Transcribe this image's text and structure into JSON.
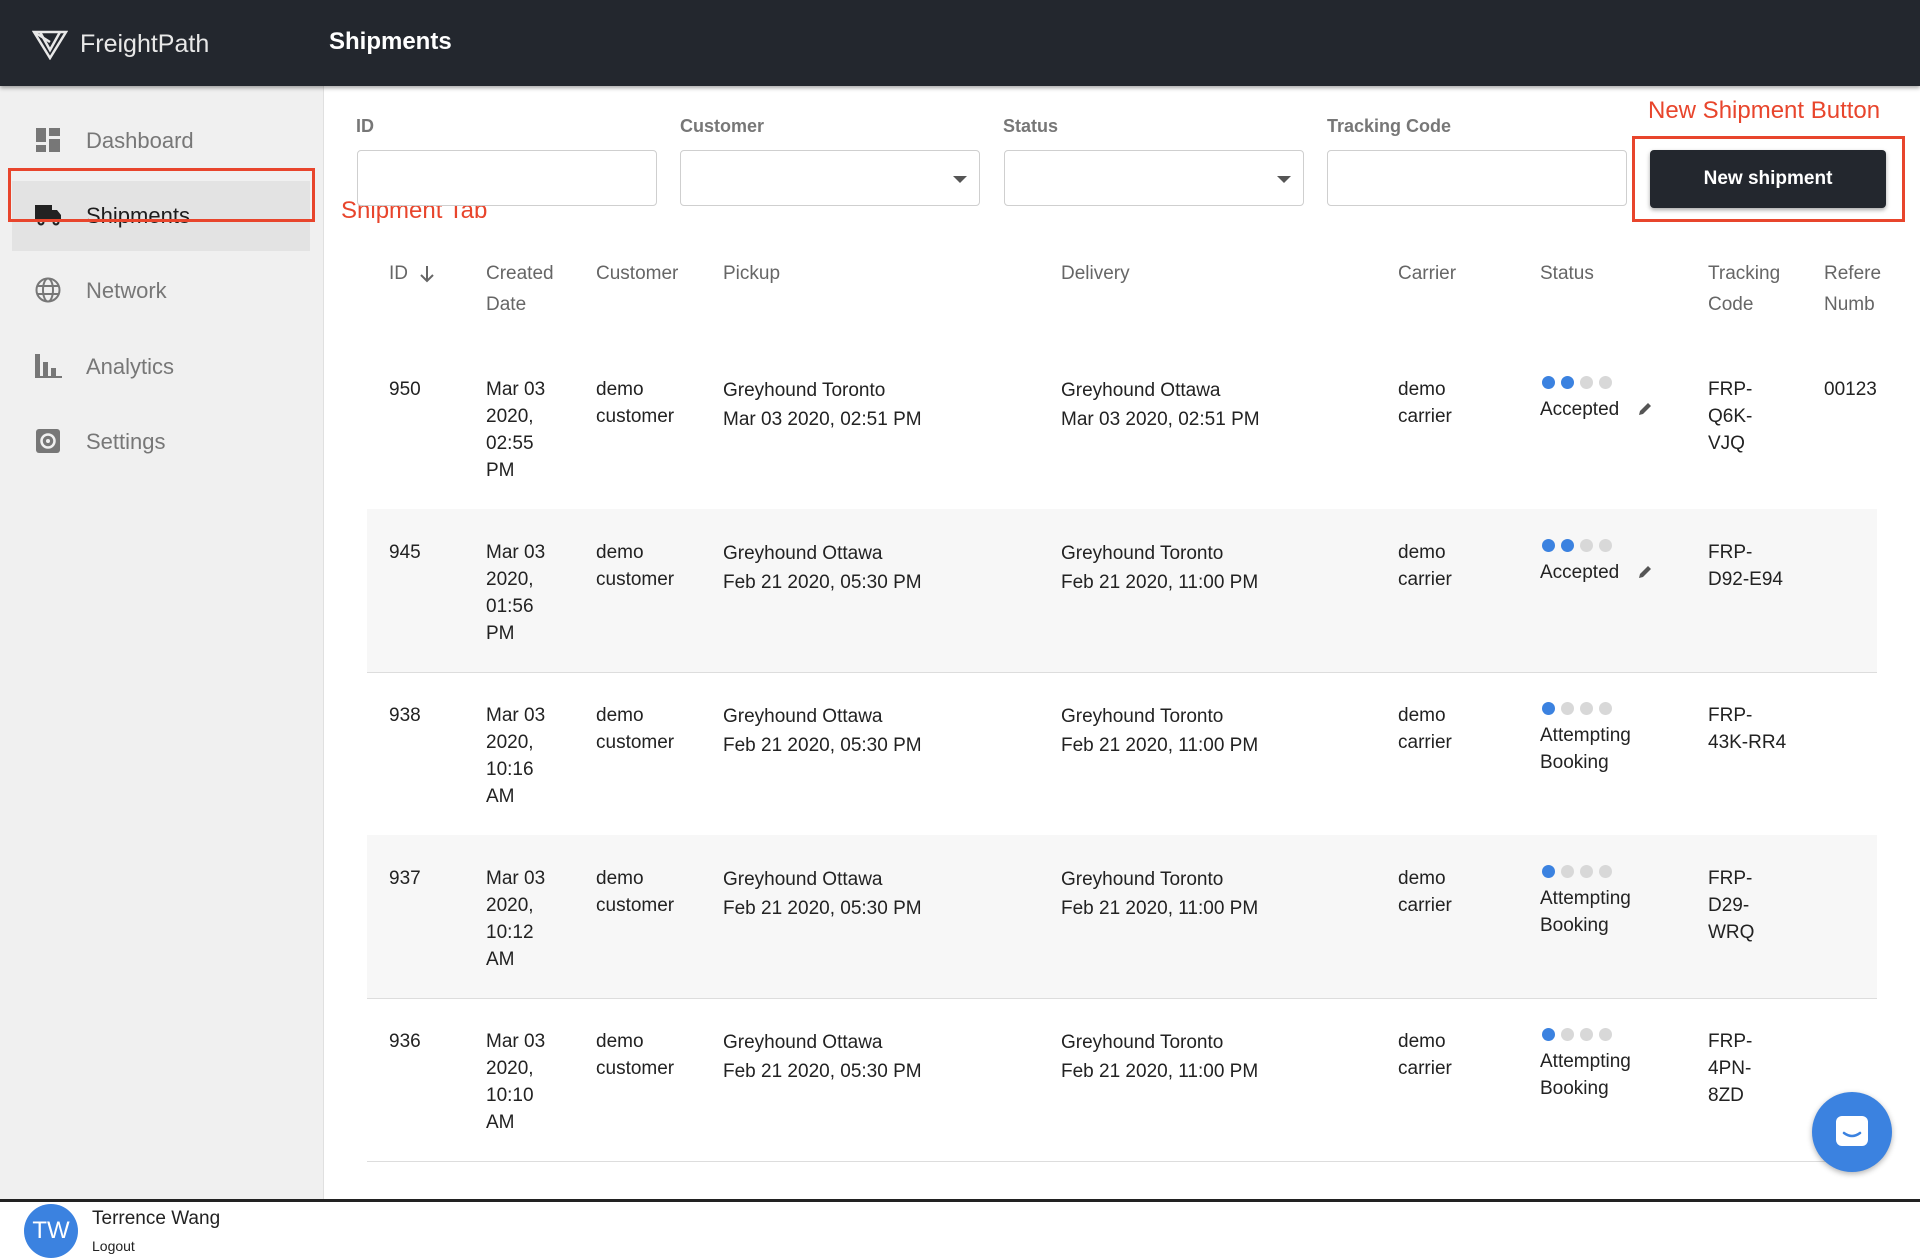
{
  "app": {
    "name": "FreightPath",
    "page_title": "Shipments"
  },
  "sidebar": {
    "items": [
      {
        "label": "Dashboard",
        "icon": "dashboard-icon"
      },
      {
        "label": "Shipments",
        "icon": "truck-icon",
        "active": true
      },
      {
        "label": "Network",
        "icon": "globe-icon"
      },
      {
        "label": "Analytics",
        "icon": "bar-chart-icon"
      },
      {
        "label": "Settings",
        "icon": "gear-icon"
      }
    ],
    "user": {
      "initials": "TW",
      "name": "Terrence Wang",
      "logout": "Logout"
    }
  },
  "annotations": {
    "shipment_tab": "Shipment Tab",
    "new_shipment_button": "New Shipment Button"
  },
  "filters": {
    "id": {
      "label": "ID",
      "value": ""
    },
    "customer": {
      "label": "Customer",
      "value": ""
    },
    "status": {
      "label": "Status",
      "value": ""
    },
    "tracking": {
      "label": "Tracking Code",
      "value": ""
    },
    "new_button": "New shipment"
  },
  "table": {
    "headers": {
      "id": "ID",
      "created": [
        "Created",
        "Date"
      ],
      "customer": "Customer",
      "pickup": "Pickup",
      "delivery": "Delivery",
      "carrier": "Carrier",
      "status": "Status",
      "tracking": [
        "Tracking",
        "Code"
      ],
      "reference": [
        "Refere",
        "Numb"
      ]
    },
    "rows": [
      {
        "id": "950",
        "created": [
          "Mar 03",
          "2020,",
          "02:55",
          "PM"
        ],
        "customer": [
          "demo",
          "customer"
        ],
        "pickup": [
          "Greyhound Toronto",
          "Mar 03 2020, 02:51 PM"
        ],
        "delivery": [
          "Greyhound Ottawa",
          "Mar 03 2020, 02:51 PM"
        ],
        "carrier": [
          "demo",
          "carrier"
        ],
        "status_dots": 2,
        "status": [
          "Accepted"
        ],
        "editable": true,
        "tracking": [
          "FRP-",
          "Q6K-",
          "VJQ"
        ],
        "reference": "00123"
      },
      {
        "id": "945",
        "created": [
          "Mar 03",
          "2020,",
          "01:56",
          "PM"
        ],
        "customer": [
          "demo",
          "customer"
        ],
        "pickup": [
          "Greyhound Ottawa",
          "Feb 21 2020, 05:30 PM"
        ],
        "delivery": [
          "Greyhound Toronto",
          "Feb 21 2020, 11:00 PM"
        ],
        "carrier": [
          "demo",
          "carrier"
        ],
        "status_dots": 2,
        "status": [
          "Accepted"
        ],
        "editable": true,
        "tracking": [
          "FRP-",
          "D92-E94"
        ],
        "reference": ""
      },
      {
        "id": "938",
        "created": [
          "Mar 03",
          "2020,",
          "10:16",
          "AM"
        ],
        "customer": [
          "demo",
          "customer"
        ],
        "pickup": [
          "Greyhound Ottawa",
          "Feb 21 2020, 05:30 PM"
        ],
        "delivery": [
          "Greyhound Toronto",
          "Feb 21 2020, 11:00 PM"
        ],
        "carrier": [
          "demo",
          "carrier"
        ],
        "status_dots": 1,
        "status": [
          "Attempting",
          "Booking"
        ],
        "editable": false,
        "tracking": [
          "FRP-",
          "43K-RR4"
        ],
        "reference": ""
      },
      {
        "id": "937",
        "created": [
          "Mar 03",
          "2020,",
          "10:12",
          "AM"
        ],
        "customer": [
          "demo",
          "customer"
        ],
        "pickup": [
          "Greyhound Ottawa",
          "Feb 21 2020, 05:30 PM"
        ],
        "delivery": [
          "Greyhound Toronto",
          "Feb 21 2020, 11:00 PM"
        ],
        "carrier": [
          "demo",
          "carrier"
        ],
        "status_dots": 1,
        "status": [
          "Attempting",
          "Booking"
        ],
        "editable": false,
        "tracking": [
          "FRP-",
          "D29-",
          "WRQ"
        ],
        "reference": ""
      },
      {
        "id": "936",
        "created": [
          "Mar 03",
          "2020,",
          "10:10",
          "AM"
        ],
        "customer": [
          "demo",
          "customer"
        ],
        "pickup": [
          "Greyhound Ottawa",
          "Feb 21 2020, 05:30 PM"
        ],
        "delivery": [
          "Greyhound Toronto",
          "Feb 21 2020, 11:00 PM"
        ],
        "carrier": [
          "demo",
          "carrier"
        ],
        "status_dots": 1,
        "status": [
          "Attempting",
          "Booking"
        ],
        "editable": false,
        "tracking": [
          "FRP-",
          "4PN-",
          "8ZD"
        ],
        "reference": ""
      }
    ]
  },
  "colors": {
    "topbar": "#23272e",
    "accent": "#3b82e0",
    "annotation": "#e8452c"
  }
}
